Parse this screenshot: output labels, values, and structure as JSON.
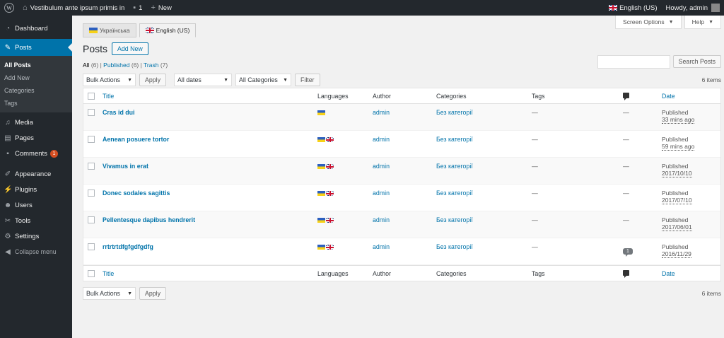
{
  "adminbar": {
    "site_name": "Vestibulum ante ipsum primis in",
    "comments_count": "1",
    "new_label": "New",
    "language": "English (US)",
    "howdy": "Howdy, admin"
  },
  "sidebar": {
    "items": [
      {
        "label": "Dashboard",
        "icon": "dashboard-icon"
      },
      {
        "label": "Posts",
        "icon": "pin-icon"
      },
      {
        "label": "Media",
        "icon": "media-icon"
      },
      {
        "label": "Pages",
        "icon": "pages-icon"
      },
      {
        "label": "Comments",
        "icon": "comments-icon",
        "badge": "1"
      },
      {
        "label": "Appearance",
        "icon": "appearance-icon"
      },
      {
        "label": "Plugins",
        "icon": "plugins-icon"
      },
      {
        "label": "Users",
        "icon": "users-icon"
      },
      {
        "label": "Tools",
        "icon": "tools-icon"
      },
      {
        "label": "Settings",
        "icon": "settings-icon"
      },
      {
        "label": "Collapse menu",
        "icon": "collapse-icon"
      }
    ],
    "submenu": [
      "All Posts",
      "Add New",
      "Categories",
      "Tags"
    ]
  },
  "lang_tabs": [
    "Українська",
    "English (US)"
  ],
  "screen_options": "Screen Options",
  "help": "Help",
  "page": {
    "title": "Posts",
    "add_new": "Add New"
  },
  "filters": {
    "all": "All",
    "all_count": "(6)",
    "published": "Published",
    "published_count": "(6)",
    "trash": "Trash",
    "trash_count": "(7)"
  },
  "search_button": "Search Posts",
  "bulk_actions": "Bulk Actions",
  "apply": "Apply",
  "all_dates": "All dates",
  "all_categories": "All Categories",
  "filter": "Filter",
  "items_count": "6 items",
  "columns": {
    "title": "Title",
    "languages": "Languages",
    "author": "Author",
    "categories": "Categories",
    "tags": "Tags",
    "date": "Date"
  },
  "posts": [
    {
      "title": "Cras id dui",
      "author": "admin",
      "category": "Без категорії",
      "tags": "—",
      "comments": "—",
      "status": "Published",
      "date": "33 mins ago"
    },
    {
      "title": "Aenean posuere tortor",
      "author": "admin",
      "category": "Без категорії",
      "tags": "—",
      "comments": "—",
      "status": "Published",
      "date": "59 mins ago"
    },
    {
      "title": "Vivamus in erat",
      "author": "admin",
      "category": "Без категорії",
      "tags": "—",
      "comments": "—",
      "status": "Published",
      "date": "2017/10/10"
    },
    {
      "title": "Donec sodales sagittis",
      "author": "admin",
      "category": "Без категорії",
      "tags": "—",
      "comments": "—",
      "status": "Published",
      "date": "2017/07/10"
    },
    {
      "title": "Pellentesque dapibus hendrerit",
      "author": "admin",
      "category": "Без категорії",
      "tags": "—",
      "comments": "—",
      "status": "Published",
      "date": "2017/06/01"
    },
    {
      "title": "rrtrtrtdfgfgdfgdfg",
      "author": "admin",
      "category": "Без категорії",
      "tags": "—",
      "comments": "1",
      "status": "Published",
      "date": "2016/11/29"
    }
  ]
}
